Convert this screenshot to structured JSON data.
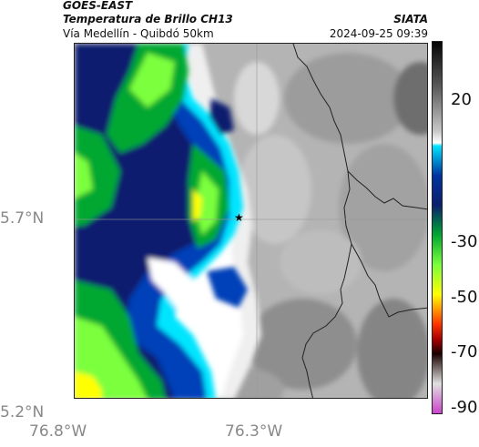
{
  "header": {
    "satellite": "GOES-EAST",
    "product": "Temperatura de Brillo CH13",
    "route": "Vía Medellín - Quibdó 50km",
    "agency": "SIATA",
    "timestamp": "2024-09-25 09:39"
  },
  "map": {
    "lat_ticks": [
      "5.7°N",
      "5.2°N"
    ],
    "lon_ticks": [
      "76.8°W",
      "76.3°W"
    ],
    "marker": "star-icon"
  },
  "colorbar": {
    "labels": [
      "20",
      "-30",
      "-50",
      "-70",
      "-90"
    ],
    "stops": [
      {
        "v": 35,
        "c": "#050505"
      },
      {
        "v": 20,
        "c": "#5a5a5a"
      },
      {
        "v": 5,
        "c": "#c8c8c8"
      },
      {
        "v": 1,
        "c": "#ffffff"
      },
      {
        "v": 0,
        "c": "#00e5ff"
      },
      {
        "v": -10,
        "c": "#0033a0"
      },
      {
        "v": -20,
        "c": "#0b1f6e"
      },
      {
        "v": -30,
        "c": "#00a832"
      },
      {
        "v": -40,
        "c": "#7cff3c"
      },
      {
        "v": -50,
        "c": "#ffff00"
      },
      {
        "v": -60,
        "c": "#ff3300"
      },
      {
        "v": -65,
        "c": "#aa0000"
      },
      {
        "v": -70,
        "c": "#1a0000"
      },
      {
        "v": -80,
        "c": "#e0e0e0"
      },
      {
        "v": -90,
        "c": "#cc44cc"
      }
    ]
  }
}
